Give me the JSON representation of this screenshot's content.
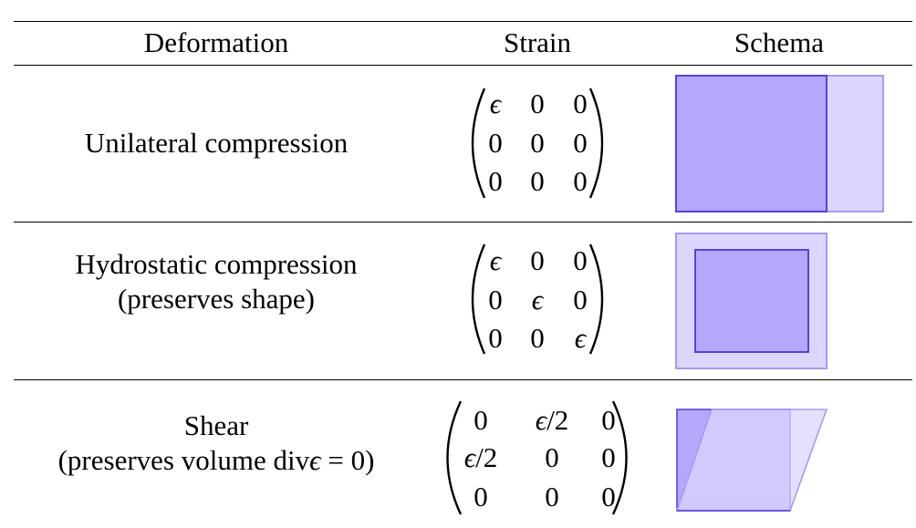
{
  "table": {
    "headers": {
      "deformation": "Deformation",
      "strain": "Strain",
      "schema": "Schema"
    },
    "rows": [
      {
        "deformation": [
          "Unilateral compression"
        ],
        "strain": [
          [
            "ϵ",
            "0",
            "0"
          ],
          [
            "0",
            "0",
            "0"
          ],
          [
            "0",
            "0",
            "0"
          ]
        ]
      },
      {
        "deformation": [
          "Hydrostatic compression",
          "(preserves shape)"
        ],
        "strain": [
          [
            "ϵ",
            "0",
            "0"
          ],
          [
            "0",
            "ϵ",
            "0"
          ],
          [
            "0",
            "0",
            "ϵ"
          ]
        ]
      },
      {
        "deformation": [
          "Shear",
          "(preserves volume ",
          "div",
          "ϵ",
          " = 0)"
        ],
        "strain": [
          [
            "0",
            "ϵ/2",
            "0"
          ],
          [
            "ϵ/2",
            "0",
            "0"
          ],
          [
            "0",
            "0",
            "0"
          ]
        ]
      }
    ]
  },
  "colors": {
    "fill_dark": "#b3a8fb",
    "fill_light": "#dcd6fd",
    "stroke_dark": "#5a3fe0",
    "stroke_light": "#a898f5"
  }
}
